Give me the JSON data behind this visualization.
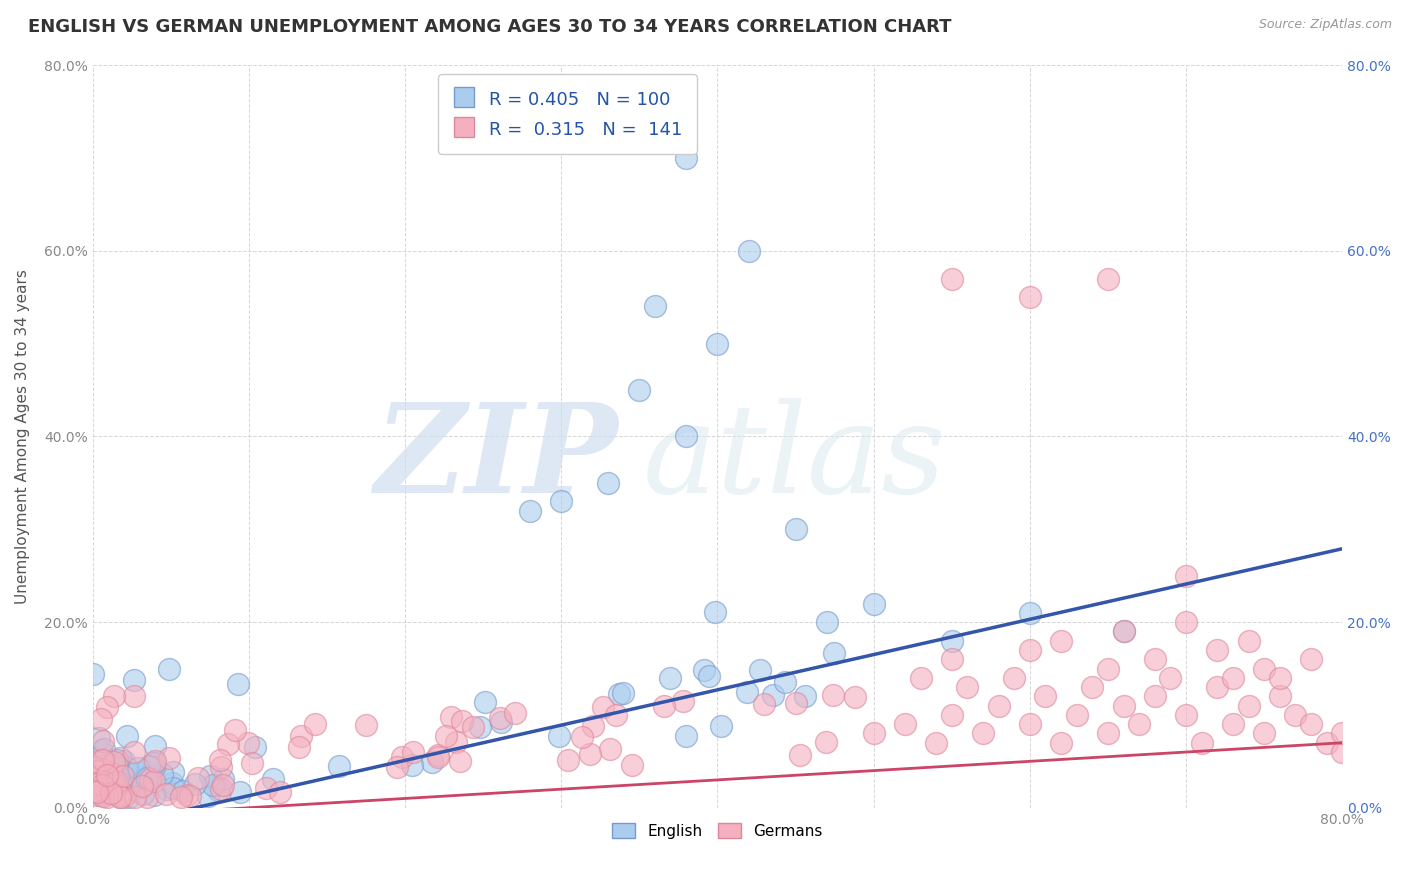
{
  "title": "ENGLISH VS GERMAN UNEMPLOYMENT AMONG AGES 30 TO 34 YEARS CORRELATION CHART",
  "source": "Source: ZipAtlas.com",
  "ylabel": "Unemployment Among Ages 30 to 34 years",
  "xlim": [
    0.0,
    0.8
  ],
  "ylim": [
    0.0,
    0.8
  ],
  "xticks": [
    0.0,
    0.1,
    0.2,
    0.3,
    0.4,
    0.5,
    0.6,
    0.7,
    0.8
  ],
  "yticks": [
    0.0,
    0.2,
    0.4,
    0.6,
    0.8
  ],
  "xticklabels": [
    "0.0%",
    "",
    "",
    "",
    "",
    "",
    "",
    "",
    "80.0%"
  ],
  "yticklabels": [
    "0.0%",
    "20.0%",
    "40.0%",
    "60.0%",
    "80.0%"
  ],
  "english_fill": "#aaccee",
  "english_edge": "#7799cc",
  "german_fill": "#f4b0c0",
  "german_edge": "#dd8899",
  "english_line_color": "#3355aa",
  "german_line_color": "#cc4466",
  "watermark_zip": "ZIP",
  "watermark_atlas": "atlas",
  "background_color": "#ffffff",
  "grid_color": "#cccccc",
  "title_fontsize": 13,
  "axis_label_fontsize": 11,
  "tick_fontsize": 10,
  "english_slope": 0.38,
  "english_intercept": -0.025,
  "german_slope": 0.1,
  "german_intercept": -0.01,
  "right_ytick_color": "#4472c4"
}
